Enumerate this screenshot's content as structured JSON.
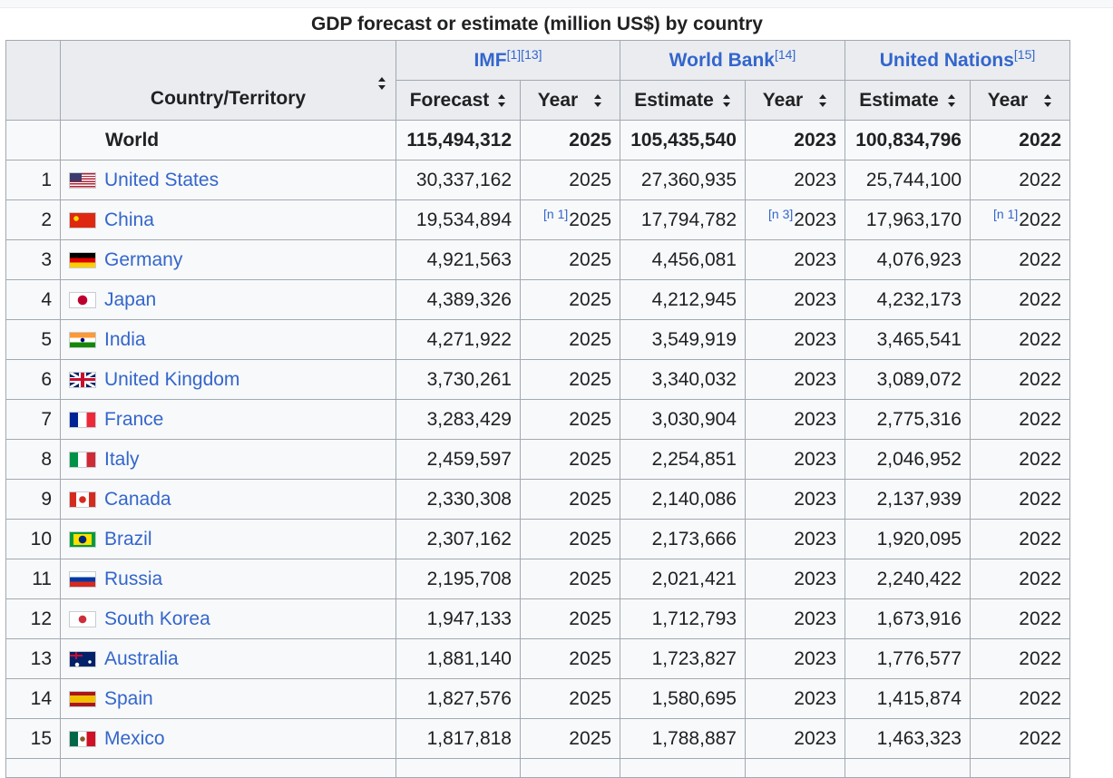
{
  "caption": "GDP forecast or estimate (million US$) by country",
  "headers": {
    "country": "Country/Territory",
    "imf": {
      "name": "IMF",
      "refs": "[1][13]"
    },
    "wb": {
      "name": "World Bank",
      "refs": "[14]"
    },
    "un": {
      "name": "United Nations",
      "refs": "[15]"
    },
    "forecast": "Forecast",
    "estimate": "Estimate",
    "year": "Year"
  },
  "world": {
    "name": "World",
    "imf_value": "115,494,312",
    "imf_year": "2025",
    "wb_value": "105,435,540",
    "wb_year": "2023",
    "un_value": "100,834,796",
    "un_year": "2022"
  },
  "rows": [
    {
      "rank": "1",
      "flag": "us-flag-icon",
      "country": "United States",
      "imf_value": "30,337,162",
      "imf_note": "",
      "imf_year": "2025",
      "wb_value": "27,360,935",
      "wb_note": "",
      "wb_year": "2023",
      "un_value": "25,744,100",
      "un_note": "",
      "un_year": "2022"
    },
    {
      "rank": "2",
      "flag": "cn-flag-icon",
      "country": "China",
      "imf_value": "19,534,894",
      "imf_note": "[n 1]",
      "imf_year": "2025",
      "wb_value": "17,794,782",
      "wb_note": "[n 3]",
      "wb_year": "2023",
      "un_value": "17,963,170",
      "un_note": "[n 1]",
      "un_year": "2022"
    },
    {
      "rank": "3",
      "flag": "de-flag-icon",
      "country": "Germany",
      "imf_value": "4,921,563",
      "imf_note": "",
      "imf_year": "2025",
      "wb_value": "4,456,081",
      "wb_note": "",
      "wb_year": "2023",
      "un_value": "4,076,923",
      "un_note": "",
      "un_year": "2022"
    },
    {
      "rank": "4",
      "flag": "jp-flag-icon",
      "country": "Japan",
      "imf_value": "4,389,326",
      "imf_note": "",
      "imf_year": "2025",
      "wb_value": "4,212,945",
      "wb_note": "",
      "wb_year": "2023",
      "un_value": "4,232,173",
      "un_note": "",
      "un_year": "2022"
    },
    {
      "rank": "5",
      "flag": "in-flag-icon",
      "country": "India",
      "imf_value": "4,271,922",
      "imf_note": "",
      "imf_year": "2025",
      "wb_value": "3,549,919",
      "wb_note": "",
      "wb_year": "2023",
      "un_value": "3,465,541",
      "un_note": "",
      "un_year": "2022"
    },
    {
      "rank": "6",
      "flag": "gb-flag-icon",
      "country": "United Kingdom",
      "imf_value": "3,730,261",
      "imf_note": "",
      "imf_year": "2025",
      "wb_value": "3,340,032",
      "wb_note": "",
      "wb_year": "2023",
      "un_value": "3,089,072",
      "un_note": "",
      "un_year": "2022"
    },
    {
      "rank": "7",
      "flag": "fr-flag-icon",
      "country": "France",
      "imf_value": "3,283,429",
      "imf_note": "",
      "imf_year": "2025",
      "wb_value": "3,030,904",
      "wb_note": "",
      "wb_year": "2023",
      "un_value": "2,775,316",
      "un_note": "",
      "un_year": "2022"
    },
    {
      "rank": "8",
      "flag": "it-flag-icon",
      "country": "Italy",
      "imf_value": "2,459,597",
      "imf_note": "",
      "imf_year": "2025",
      "wb_value": "2,254,851",
      "wb_note": "",
      "wb_year": "2023",
      "un_value": "2,046,952",
      "un_note": "",
      "un_year": "2022"
    },
    {
      "rank": "9",
      "flag": "ca-flag-icon",
      "country": "Canada",
      "imf_value": "2,330,308",
      "imf_note": "",
      "imf_year": "2025",
      "wb_value": "2,140,086",
      "wb_note": "",
      "wb_year": "2023",
      "un_value": "2,137,939",
      "un_note": "",
      "un_year": "2022"
    },
    {
      "rank": "10",
      "flag": "br-flag-icon",
      "country": "Brazil",
      "imf_value": "2,307,162",
      "imf_note": "",
      "imf_year": "2025",
      "wb_value": "2,173,666",
      "wb_note": "",
      "wb_year": "2023",
      "un_value": "1,920,095",
      "un_note": "",
      "un_year": "2022"
    },
    {
      "rank": "11",
      "flag": "ru-flag-icon",
      "country": "Russia",
      "imf_value": "2,195,708",
      "imf_note": "",
      "imf_year": "2025",
      "wb_value": "2,021,421",
      "wb_note": "",
      "wb_year": "2023",
      "un_value": "2,240,422",
      "un_note": "",
      "un_year": "2022"
    },
    {
      "rank": "12",
      "flag": "kr-flag-icon",
      "country": "South Korea",
      "imf_value": "1,947,133",
      "imf_note": "",
      "imf_year": "2025",
      "wb_value": "1,712,793",
      "wb_note": "",
      "wb_year": "2023",
      "un_value": "1,673,916",
      "un_note": "",
      "un_year": "2022"
    },
    {
      "rank": "13",
      "flag": "au-flag-icon",
      "country": "Australia",
      "imf_value": "1,881,140",
      "imf_note": "",
      "imf_year": "2025",
      "wb_value": "1,723,827",
      "wb_note": "",
      "wb_year": "2023",
      "un_value": "1,776,577",
      "un_note": "",
      "un_year": "2022"
    },
    {
      "rank": "14",
      "flag": "es-flag-icon",
      "country": "Spain",
      "imf_value": "1,827,576",
      "imf_note": "",
      "imf_year": "2025",
      "wb_value": "1,580,695",
      "wb_note": "",
      "wb_year": "2023",
      "un_value": "1,415,874",
      "un_note": "",
      "un_year": "2022"
    },
    {
      "rank": "15",
      "flag": "mx-flag-icon",
      "country": "Mexico",
      "imf_value": "1,817,818",
      "imf_note": "",
      "imf_year": "2025",
      "wb_value": "1,788,887",
      "wb_note": "",
      "wb_year": "2023",
      "un_value": "1,463,323",
      "un_note": "",
      "un_year": "2022"
    }
  ]
}
